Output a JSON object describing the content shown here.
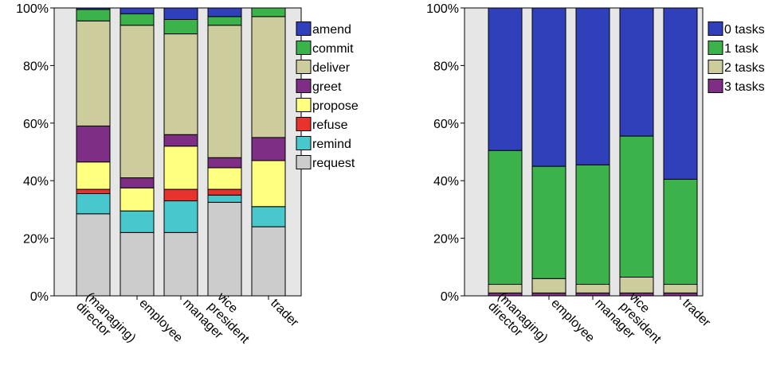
{
  "chart_data": [
    {
      "type": "bar",
      "stacked": true,
      "percent": true,
      "categories": [
        "(managing) director",
        "employee",
        "manager",
        "vice president",
        "trader"
      ],
      "category_lines": [
        [
          "(managing)",
          "director"
        ],
        [
          "employee"
        ],
        [
          "manager"
        ],
        [
          "vice",
          "president"
        ],
        [
          "trader"
        ]
      ],
      "ylim": [
        0,
        100
      ],
      "yticks": [
        0,
        20,
        40,
        60,
        80,
        100
      ],
      "ytick_labels": [
        "0%",
        "20%",
        "40%",
        "60%",
        "80%",
        "100%"
      ],
      "grid": false,
      "legend": "right",
      "series": [
        {
          "name": "request",
          "color": "#cccccc",
          "values": [
            28.5,
            22,
            22,
            32.5,
            24
          ]
        },
        {
          "name": "remind",
          "color": "#48c8cc",
          "values": [
            7,
            7.5,
            11,
            2.5,
            7
          ]
        },
        {
          "name": "refuse",
          "color": "#e8322e",
          "values": [
            1.5,
            0,
            4,
            2,
            0
          ]
        },
        {
          "name": "propose",
          "color": "#ffff80",
          "values": [
            9.5,
            8,
            15,
            7.5,
            16
          ]
        },
        {
          "name": "greet",
          "color": "#7e2e85",
          "values": [
            12.5,
            3.5,
            4,
            3.5,
            8
          ]
        },
        {
          "name": "deliver",
          "color": "#cccc9c",
          "values": [
            36.5,
            53,
            35,
            46,
            42
          ]
        },
        {
          "name": "commit",
          "color": "#3cb24b",
          "values": [
            4,
            4,
            5,
            3,
            3
          ]
        },
        {
          "name": "amend",
          "color": "#3040ba",
          "values": [
            0.5,
            2,
            4,
            3,
            0
          ]
        }
      ],
      "legend_order": [
        "amend",
        "commit",
        "deliver",
        "greet",
        "propose",
        "refuse",
        "remind",
        "request"
      ]
    },
    {
      "type": "bar",
      "stacked": true,
      "percent": true,
      "categories": [
        "(managing) director",
        "employee",
        "manager",
        "vice president",
        "trader"
      ],
      "category_lines": [
        [
          "(managing)",
          "director"
        ],
        [
          "employee"
        ],
        [
          "manager"
        ],
        [
          "vice",
          "president"
        ],
        [
          "trader"
        ]
      ],
      "ylim": [
        0,
        100
      ],
      "yticks": [
        0,
        20,
        40,
        60,
        80,
        100
      ],
      "ytick_labels": [
        "0%",
        "20%",
        "40%",
        "60%",
        "80%",
        "100%"
      ],
      "grid": false,
      "legend": "right",
      "series": [
        {
          "name": "3 tasks",
          "color": "#7e2e85",
          "values": [
            1,
            1,
            1,
            1,
            1
          ]
        },
        {
          "name": "2 tasks",
          "color": "#cccc9c",
          "values": [
            3,
            5,
            3,
            5.5,
            3
          ]
        },
        {
          "name": "1 task",
          "color": "#3cb24b",
          "values": [
            46.5,
            39,
            41.5,
            49,
            36.5
          ]
        },
        {
          "name": "0 tasks",
          "color": "#3040ba",
          "values": [
            49.5,
            55,
            54.5,
            44.5,
            59.5
          ]
        }
      ],
      "legend_order": [
        "0 tasks",
        "1 task",
        "2 tasks",
        "3 tasks"
      ]
    }
  ]
}
